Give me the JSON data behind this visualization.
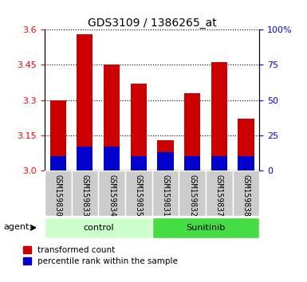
{
  "title": "GDS3109 / 1386265_at",
  "samples": [
    "GSM159830",
    "GSM159833",
    "GSM159834",
    "GSM159835",
    "GSM159831",
    "GSM159832",
    "GSM159837",
    "GSM159838"
  ],
  "transformed_count": [
    3.3,
    3.58,
    3.45,
    3.37,
    3.13,
    3.33,
    3.46,
    3.22
  ],
  "percentile_rank_pct": [
    10,
    17,
    17,
    10,
    13,
    10,
    10,
    10
  ],
  "bar_width": 0.6,
  "ylim": [
    3.0,
    3.6
  ],
  "y2lim": [
    0,
    100
  ],
  "yticks": [
    3.0,
    3.15,
    3.3,
    3.45,
    3.6
  ],
  "y2ticks": [
    0,
    25,
    50,
    75,
    100
  ],
  "bar_color_red": "#cc0000",
  "bar_color_blue": "#0000cc",
  "control_bg_light": "#ccffcc",
  "sunitinib_bg_dark": "#44dd44",
  "tick_label_bg": "#cccccc",
  "agent_label": "agent",
  "legend1": "transformed count",
  "legend2": "percentile rank within the sample",
  "control_indices": [
    0,
    1,
    2,
    3
  ],
  "sunitinib_indices": [
    4,
    5,
    6,
    7
  ]
}
